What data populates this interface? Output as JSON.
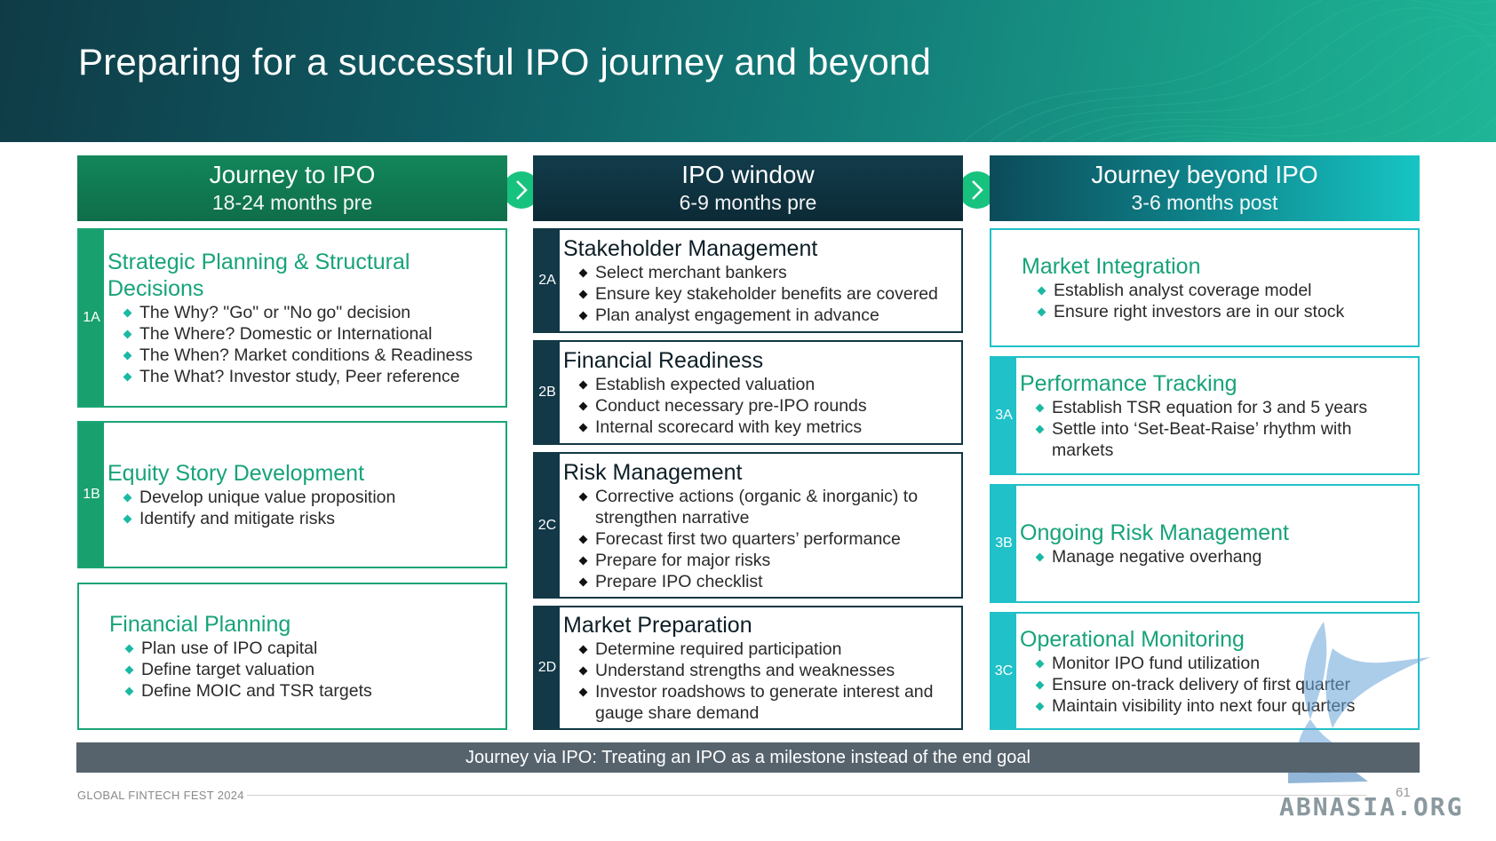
{
  "title": "Preparing for a successful IPO journey and beyond",
  "columns": [
    {
      "title": "Journey to IPO",
      "subtitle": "18-24 months pre",
      "cards": [
        {
          "tag": "1A",
          "title": "Strategic Planning & Structural Decisions",
          "bullets": [
            "The Why? \"Go\" or \"No go\" decision",
            "The Where? Domestic or International",
            "The When? Market conditions & Readiness",
            "The What? Investor study, Peer reference"
          ]
        },
        {
          "tag": "1B",
          "title": "Equity Story Development",
          "bullets": [
            "Develop unique value proposition",
            "Identify and mitigate risks"
          ]
        },
        {
          "tag": "",
          "title": "Financial Planning",
          "bullets": [
            "Plan use of IPO capital",
            "Define target valuation",
            "Define MOIC and TSR targets"
          ]
        }
      ]
    },
    {
      "title": "IPO window",
      "subtitle": "6-9 months pre",
      "cards": [
        {
          "tag": "2A",
          "title": "Stakeholder Management",
          "bullets": [
            "Select merchant bankers",
            "Ensure key stakeholder benefits are covered",
            "Plan analyst engagement in advance"
          ]
        },
        {
          "tag": "2B",
          "title": "Financial Readiness",
          "bullets": [
            "Establish expected valuation",
            "Conduct necessary pre-IPO rounds",
            "Internal scorecard with key metrics"
          ]
        },
        {
          "tag": "2C",
          "title": "Risk Management",
          "bullets": [
            "Corrective actions (organic & inorganic) to strengthen narrative",
            "Forecast first two quarters’ performance",
            "Prepare for major risks",
            "Prepare IPO checklist"
          ]
        },
        {
          "tag": "2D",
          "title": "Market Preparation",
          "bullets": [
            "Determine required participation",
            "Understand strengths and weaknesses",
            "Investor roadshows to generate interest and gauge share demand"
          ]
        }
      ]
    },
    {
      "title": "Journey beyond IPO",
      "subtitle": "3-6 months post",
      "cards": [
        {
          "tag": "",
          "title": "Market Integration",
          "bullets": [
            "Establish analyst coverage model",
            "Ensure right investors are in our stock"
          ]
        },
        {
          "tag": "3A",
          "title": "Performance Tracking",
          "bullets": [
            "Establish TSR equation for 3 and 5 years",
            "Settle into ‘Set-Beat-Raise’ rhythm with markets"
          ]
        },
        {
          "tag": "3B",
          "title": "Ongoing Risk Management",
          "bullets": [
            "Manage negative overhang"
          ]
        },
        {
          "tag": "3C",
          "title": "Operational Monitoring",
          "bullets": [
            "Monitor IPO fund utilization",
            "Ensure on-track delivery of first quarter",
            "Maintain visibility into next four quarters"
          ]
        }
      ]
    }
  ],
  "footer_banner": "Journey via IPO: Treating an IPO as a milestone instead of the end goal",
  "footer_brand": "GLOBAL FINTECH FEST 2024",
  "page_number": "61",
  "watermark": "ABNASIA.ORG",
  "colors": {
    "green": "#19a06f",
    "navy": "#133847",
    "teal": "#20c1c8",
    "footer_bar": "#56636d"
  }
}
